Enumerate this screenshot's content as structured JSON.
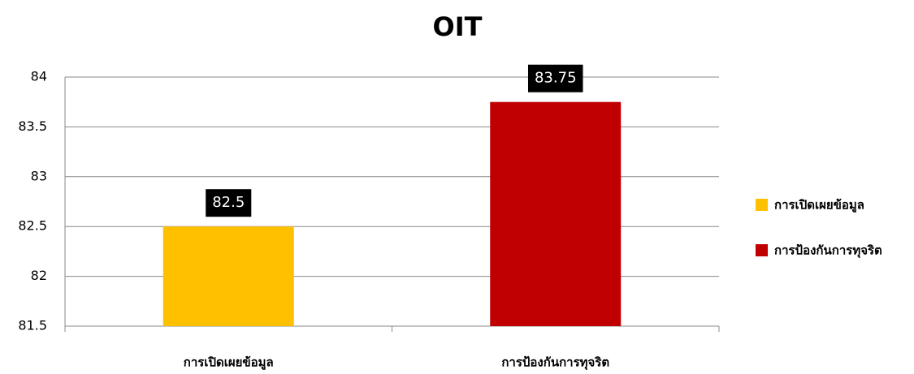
{
  "chart_data": {
    "type": "bar",
    "title": "OIT",
    "categories": [
      "การเปิดเผยข้อมูล",
      "การป้องกันการทุจริต"
    ],
    "values": [
      82.5,
      83.75
    ],
    "colors": [
      "#ffc000",
      "#c00000"
    ],
    "ylim": [
      81.5,
      84
    ],
    "yticks": [
      81.5,
      82,
      82.5,
      83,
      83.5,
      84
    ],
    "grid": true,
    "legend": "right"
  }
}
